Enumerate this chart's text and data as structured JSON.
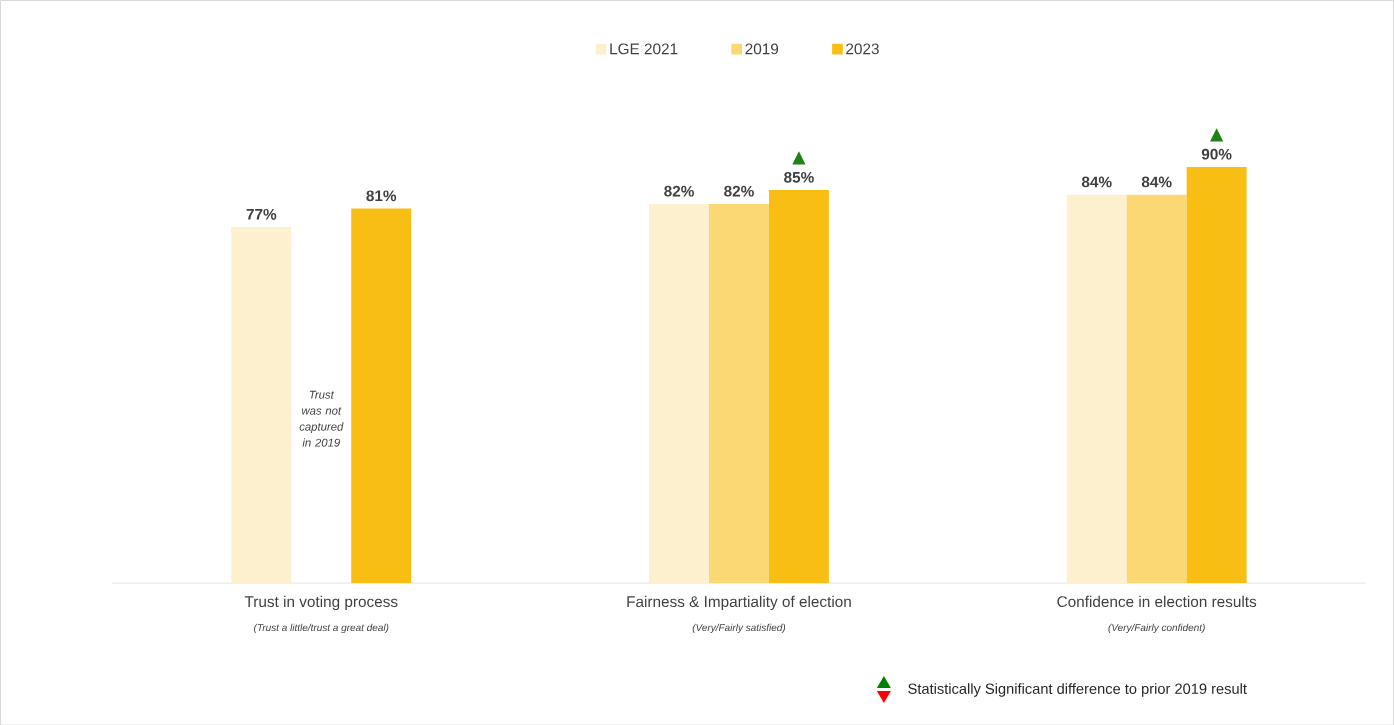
{
  "chart_data": {
    "type": "bar",
    "categories": [
      "Trust in voting process",
      "Fairness & Impartiality of election",
      "Confidence in election results"
    ],
    "series": [
      {
        "name": "LGE 2021",
        "color": "#fdf0cf",
        "values": [
          77,
          82,
          84
        ],
        "value_labels": [
          "77%",
          "82%",
          "84%"
        ]
      },
      {
        "name": "2019",
        "color": "#fbd874",
        "values": [
          null,
          82,
          84
        ],
        "value_labels": [
          null,
          "82%",
          "84%"
        ]
      },
      {
        "name": "2023",
        "color": "#f9be14",
        "values": [
          81,
          85,
          90
        ],
        "value_labels": [
          "81%",
          "85%",
          "90%"
        ]
      }
    ],
    "tick_labels": "x",
    "legend": "top",
    "grid": false,
    "annotations": [
      "(Trust a little/trust a great deal)",
      "(Very/Fairly satisfied)",
      "(Very/Fairly confident)",
      "Trust was not captured in 2019",
      "▲",
      "▲",
      "Statistically Significant difference to prior 2019 result"
    ]
  }
}
